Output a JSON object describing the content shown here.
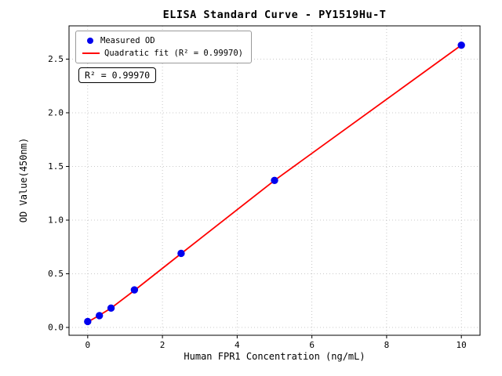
{
  "chart_data": {
    "type": "scatter",
    "title": "ELISA Standard Curve - PY1519Hu-T",
    "xlabel": "Human FPR1 Concentration (ng/mL)",
    "ylabel": "OD Value(450nm)",
    "xlim": [
      -0.5,
      10.5
    ],
    "ylim": [
      -0.073,
      2.81
    ],
    "x_ticks": [
      0,
      2,
      4,
      6,
      8,
      10
    ],
    "x_tick_labels": [
      "0",
      "2",
      "4",
      "6",
      "8",
      "10"
    ],
    "y_ticks": [
      0,
      0.5,
      1.0,
      1.5,
      2.0,
      2.5
    ],
    "y_tick_labels": [
      "0.0",
      "0.5",
      "1.0",
      "1.5",
      "2.0",
      "2.5"
    ],
    "grid": true,
    "legend_position": "upper-left",
    "annotation": "R² = 0.99970",
    "colors": {
      "points": "#0000ee",
      "fit_line": "#ff0000",
      "grid": "#b8b8b8",
      "spines": "#000000"
    },
    "series": [
      {
        "name": "Measured OD",
        "type": "scatter",
        "color": "#0000ee",
        "x": [
          0,
          0.3125,
          0.625,
          1.25,
          2.5,
          5,
          10
        ],
        "y": [
          0.055,
          0.11,
          0.18,
          0.35,
          0.69,
          1.37,
          2.63
        ]
      },
      {
        "name": "Quadratic fit (R² = 0.99970)",
        "type": "line",
        "color": "#ff0000",
        "x": [
          0,
          0.3125,
          0.625,
          1.25,
          2.5,
          5,
          10
        ],
        "y": [
          0.05,
          0.113,
          0.18,
          0.345,
          0.688,
          1.37,
          2.63
        ]
      }
    ]
  }
}
